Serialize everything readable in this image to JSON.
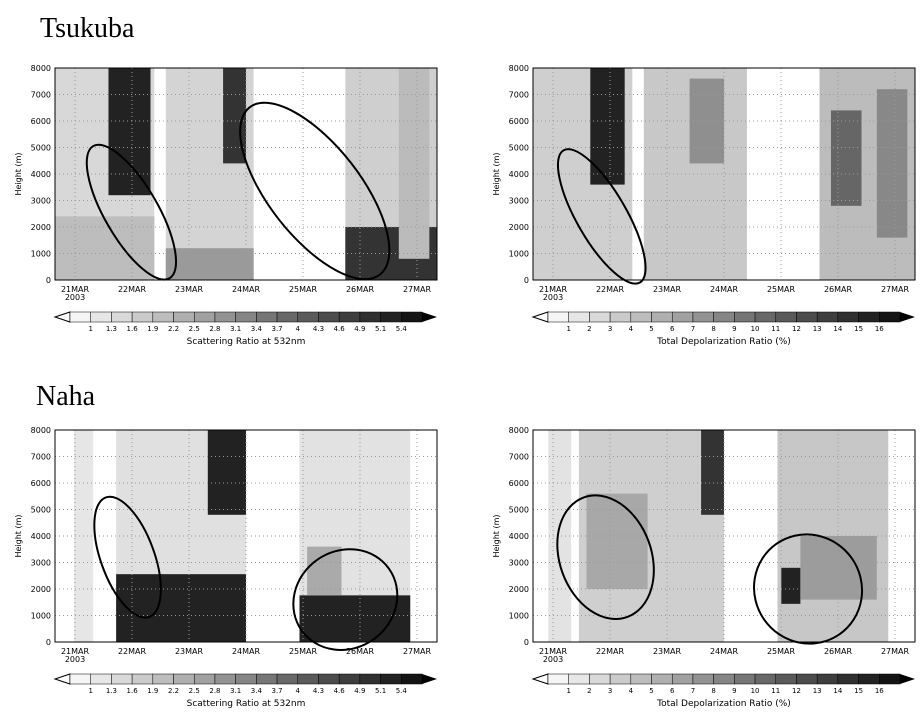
{
  "sections": [
    {
      "title": "Tsukuba",
      "panels": [
        {
          "ylabel": "Height (m)",
          "yticks": [
            0,
            1000,
            2000,
            3000,
            4000,
            5000,
            6000,
            7000,
            8000
          ],
          "xticks": [
            "21MAR",
            "22MAR",
            "23MAR",
            "24MAR",
            "25MAR",
            "26MAR",
            "27MAR"
          ],
          "year": "2003",
          "colorbar_labels": [
            "1",
            "1.3",
            "1.6",
            "1.9",
            "2.2",
            "2.5",
            "2.8",
            "3.1",
            "3.4",
            "3.7",
            "4",
            "4.3",
            "4.6",
            "4.9",
            "5.1",
            "5.4"
          ],
          "colorbar_title": "Scattering Ratio at 532nm"
        },
        {
          "ylabel": "Height (m)",
          "yticks": [
            0,
            1000,
            2000,
            3000,
            4000,
            5000,
            6000,
            7000,
            8000
          ],
          "xticks": [
            "21MAR",
            "22MAR",
            "23MAR",
            "24MAR",
            "25MAR",
            "26MAR",
            "27MAR"
          ],
          "year": "2003",
          "colorbar_labels": [
            "1",
            "2",
            "3",
            "4",
            "5",
            "6",
            "7",
            "8",
            "9",
            "10",
            "11",
            "12",
            "13",
            "14",
            "15",
            "16"
          ],
          "colorbar_title": "Total Depolarization Ratio (%)"
        }
      ]
    },
    {
      "title": "Naha",
      "panels": [
        {
          "ylabel": "Height (m)",
          "yticks": [
            0,
            1000,
            2000,
            3000,
            4000,
            5000,
            6000,
            7000,
            8000
          ],
          "xticks": [
            "21MAR",
            "22MAR",
            "23MAR",
            "24MAR",
            "25MAR",
            "26MAR",
            "27MAR"
          ],
          "year": "2003",
          "colorbar_labels": [
            "1",
            "1.3",
            "1.6",
            "1.9",
            "2.2",
            "2.5",
            "2.8",
            "3.1",
            "3.4",
            "3.7",
            "4",
            "4.3",
            "4.6",
            "4.9",
            "5.1",
            "5.4"
          ],
          "colorbar_title": "Scattering Ratio at 532nm"
        },
        {
          "ylabel": "Height (m)",
          "yticks": [
            0,
            1000,
            2000,
            3000,
            4000,
            5000,
            6000,
            7000,
            8000
          ],
          "xticks": [
            "21MAR",
            "22MAR",
            "23MAR",
            "24MAR",
            "25MAR",
            "26MAR",
            "27MAR"
          ],
          "year": "2003",
          "colorbar_labels": [
            "1",
            "2",
            "3",
            "4",
            "5",
            "6",
            "7",
            "8",
            "9",
            "10",
            "11",
            "12",
            "13",
            "14",
            "15",
            "16"
          ],
          "colorbar_title": "Total Depolarization Ratio (%)"
        }
      ]
    }
  ]
}
